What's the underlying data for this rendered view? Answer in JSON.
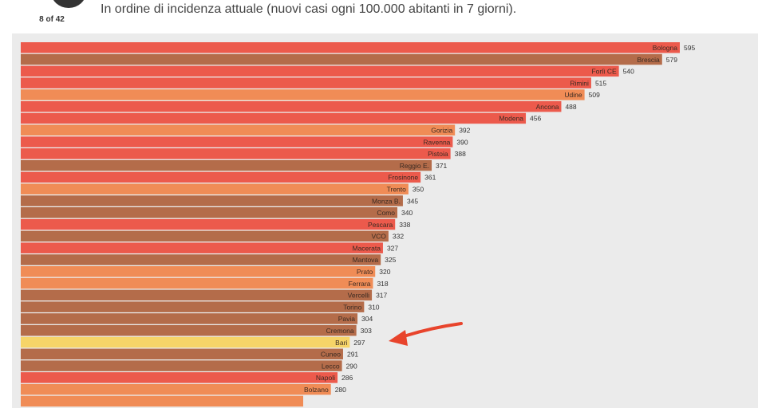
{
  "header": {
    "counter": "8 of 42",
    "subtitle": "In ordine di incidenza attuale (nuovi casi ogni 100.000 abitanti in 7 giorni)."
  },
  "colors": {
    "red": "#ec5a4c",
    "brown": "#b46c4a",
    "orange": "#f08c56",
    "yellow": "#f6d468",
    "arrow": "#e8442c"
  },
  "chart_data": {
    "type": "bar",
    "orientation": "horizontal",
    "highlight": "Bari",
    "xlim": [
      0,
      595
    ],
    "categories": [
      "Bologna",
      "Brescia",
      "Forlì CE",
      "Rimini",
      "Udine",
      "Ancona",
      "Modena",
      "Gorizia",
      "Ravenna",
      "Pistoia",
      "Reggio E.",
      "Frosinone",
      "Trento",
      "Monza B.",
      "Como",
      "Pescara",
      "VCO",
      "Macerata",
      "Mantova",
      "Prato",
      "Ferrara",
      "Vercelli",
      "Torino",
      "Pavia",
      "Cremona",
      "Bari",
      "Cuneo",
      "Lecco",
      "Napoli",
      "Bolzano",
      ""
    ],
    "values": [
      595,
      579,
      540,
      515,
      509,
      488,
      456,
      392,
      390,
      388,
      371,
      361,
      350,
      345,
      340,
      338,
      332,
      327,
      325,
      320,
      318,
      317,
      310,
      304,
      303,
      297,
      291,
      290,
      286,
      280,
      255
    ],
    "color_keys": [
      "red",
      "brown",
      "red",
      "red",
      "orange",
      "red",
      "red",
      "orange",
      "red",
      "red",
      "brown",
      "red",
      "orange",
      "brown",
      "brown",
      "red",
      "brown",
      "red",
      "brown",
      "orange",
      "orange",
      "brown",
      "brown",
      "brown",
      "brown",
      "yellow",
      "brown",
      "brown",
      "red",
      "orange",
      "orange"
    ],
    "show_value_labels": [
      true,
      true,
      true,
      true,
      true,
      true,
      true,
      true,
      true,
      true,
      true,
      true,
      true,
      true,
      true,
      true,
      true,
      true,
      true,
      true,
      true,
      true,
      true,
      true,
      true,
      true,
      true,
      true,
      true,
      true,
      false
    ]
  }
}
